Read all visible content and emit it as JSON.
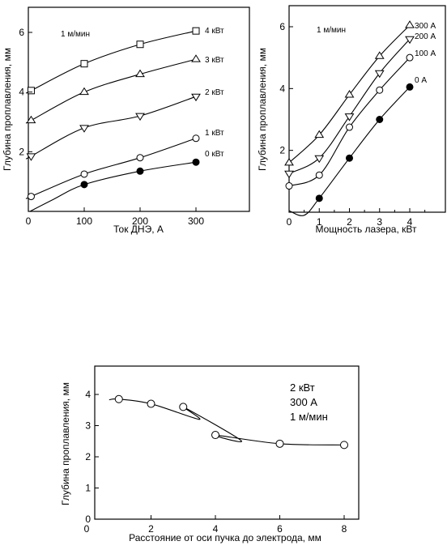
{
  "chart_data": [
    {
      "type": "scatter",
      "xlabel": "Ток ДНЭ, А",
      "ylabel": "Глубина проплавления, мм",
      "annotation": "1 м/мин",
      "xlim": [
        0,
        300
      ],
      "ylim": [
        0,
        7
      ],
      "xticks": [
        0,
        100,
        200,
        300
      ],
      "yticks": [
        2,
        4,
        6
      ],
      "series": [
        {
          "name": "4 кВт",
          "marker": "square",
          "x": [
            5,
            100,
            200,
            300
          ],
          "y": [
            4.05,
            4.95,
            5.6,
            6.05
          ]
        },
        {
          "name": "3 кВт",
          "marker": "triangle-up",
          "x": [
            5,
            100,
            200,
            300
          ],
          "y": [
            3.05,
            4.0,
            4.6,
            5.1
          ]
        },
        {
          "name": "2 кВт",
          "marker": "triangle-down",
          "x": [
            5,
            100,
            200,
            300
          ],
          "y": [
            1.85,
            2.8,
            3.2,
            3.85
          ]
        },
        {
          "name": "1 кВт",
          "marker": "circle-open",
          "x": [
            5,
            100,
            200,
            300
          ],
          "y": [
            0.5,
            1.25,
            1.8,
            2.45
          ]
        },
        {
          "name": "0 кВт",
          "marker": "circle-filled",
          "x": [
            100,
            200,
            300
          ],
          "y": [
            0.9,
            1.35,
            1.65
          ]
        }
      ]
    },
    {
      "type": "scatter",
      "xlabel": "Мощность лазера, кВт",
      "ylabel": "Глубина проплавления, мм",
      "annotation": "1 м/мин",
      "xlim": [
        0,
        5.2
      ],
      "ylim": [
        0,
        7
      ],
      "xticks": [
        0,
        1,
        2,
        3,
        4
      ],
      "yticks": [
        2,
        4,
        6
      ],
      "series": [
        {
          "name": "300 А",
          "marker": "triangle-up",
          "x": [
            0,
            1,
            2,
            3,
            4
          ],
          "y": [
            1.6,
            2.5,
            3.8,
            5.05,
            6.05
          ]
        },
        {
          "name": "200 А",
          "marker": "triangle-down",
          "x": [
            0,
            1,
            2,
            3,
            4
          ],
          "y": [
            1.25,
            1.75,
            3.1,
            4.5,
            5.6
          ]
        },
        {
          "name": "100 А",
          "marker": "circle-open",
          "x": [
            0,
            1,
            2,
            3,
            4
          ],
          "y": [
            0.85,
            1.2,
            2.75,
            3.95,
            5.0
          ]
        },
        {
          "name": "0 А",
          "marker": "circle-filled",
          "x": [
            1,
            2,
            3,
            4
          ],
          "y": [
            0.45,
            1.75,
            3.0,
            4.05
          ]
        }
      ]
    },
    {
      "type": "scatter",
      "xlabel": "Расстояние от оси пучка до электрода, мм",
      "ylabel": "Глубина проплавления, мм",
      "annotation": [
        "2 кВт",
        "300 А",
        "1 м/мин"
      ],
      "xlim": [
        0,
        9
      ],
      "ylim": [
        0,
        4.6
      ],
      "xticks": [
        0,
        2,
        4,
        6,
        8
      ],
      "yticks": [
        0,
        1,
        2,
        3,
        4
      ],
      "series": [
        {
          "name": "",
          "marker": "circle-open",
          "x": [
            1,
            2,
            3,
            4,
            6,
            8
          ],
          "y": [
            3.85,
            3.7,
            3.6,
            2.7,
            2.42,
            2.38
          ]
        }
      ]
    }
  ]
}
